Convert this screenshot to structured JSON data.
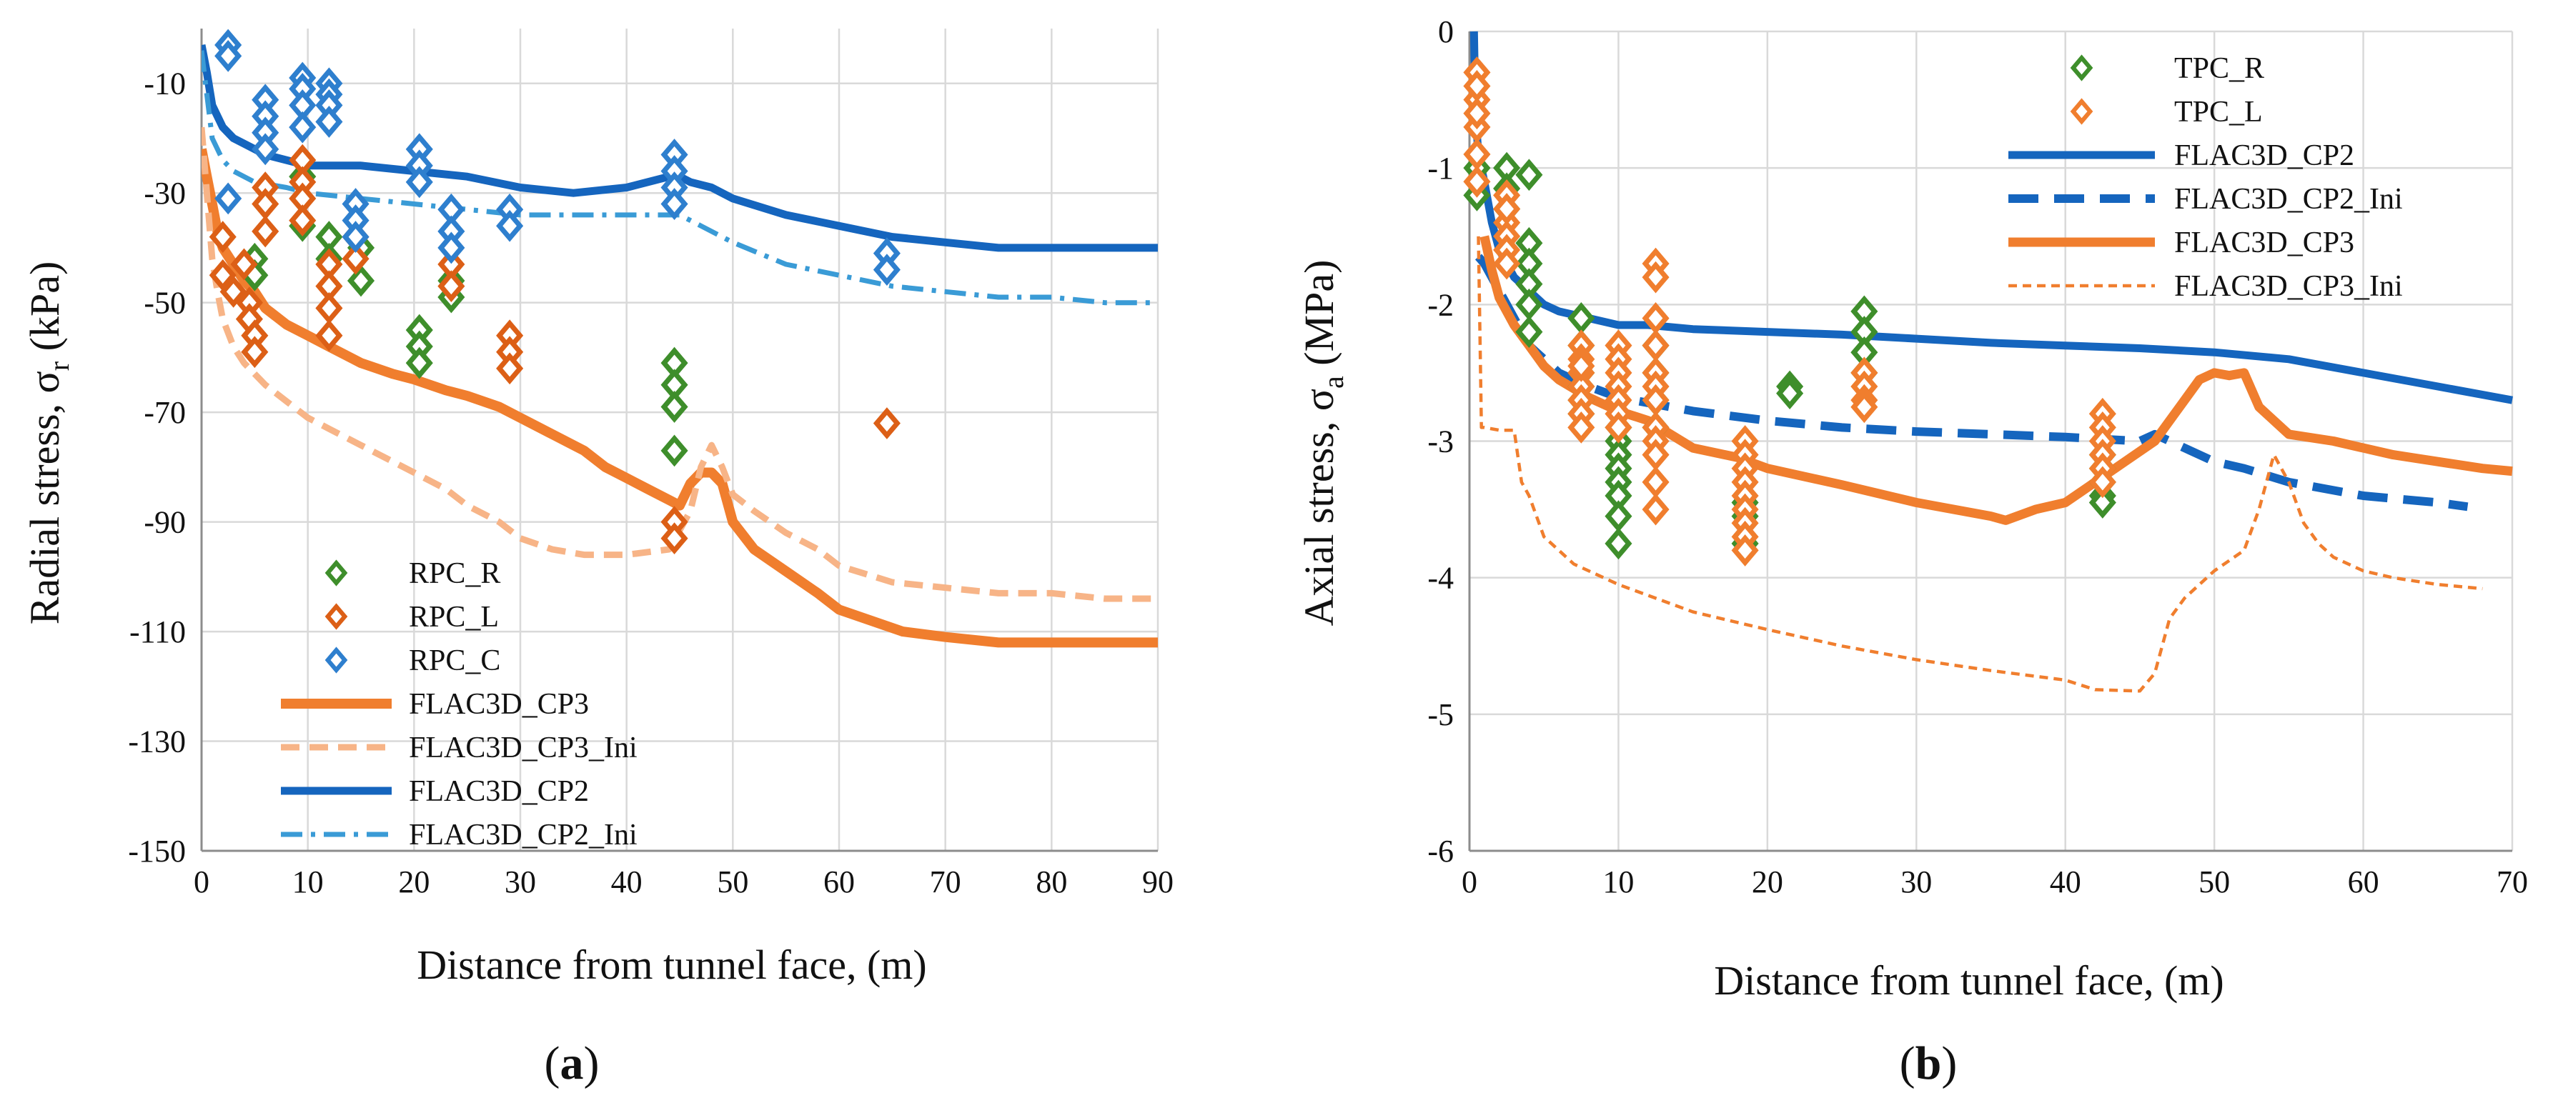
{
  "colors": {
    "green": "#3e8e2b",
    "orange_dark": "#dc5f16",
    "blue_marker": "#2e7fce",
    "cp3_orange": "#f07e2e",
    "cp3_ini_orange": "#f7b487",
    "cp2_blue": "#1565be",
    "cp2_ini_blue": "#3a9bd6"
  },
  "chart_data": [
    {
      "type": "scatter",
      "caption": [
        "(",
        "a",
        ")"
      ],
      "xlabel": "Distance from tunnel face, (m)",
      "ylabel": "Radial stress, σ",
      "ylabel_sub": "r",
      "ylabel_unit": " (kPa)",
      "xlim": [
        0,
        90
      ],
      "ylim": [
        -150,
        0
      ],
      "xticks": [
        "0",
        "10",
        "20",
        "30",
        "40",
        "50",
        "60",
        "70",
        "80",
        "90"
      ],
      "yticks": [
        "-10",
        "-30",
        "-50",
        "-70",
        "-90",
        "-110",
        "-130",
        "-150"
      ],
      "legend": [
        "RPC_R",
        "RPC_L",
        "RPC_C",
        "FLAC3D_CP3",
        "FLAC3D_CP3_Ini",
        "FLAC3D_CP2",
        "FLAC3D_CP2_Ini"
      ],
      "series": [
        {
          "name": "RPC_R",
          "kind": "marker",
          "x": [
            5,
            5,
            9.5,
            9.5,
            12,
            12,
            15,
            15,
            20.5,
            20.5,
            20.5,
            23.5,
            23.5,
            44.5,
            44.5,
            44.5,
            44.5
          ],
          "y": [
            -42,
            -45,
            -27,
            -36,
            -38,
            -42,
            -40,
            -46,
            -55,
            -58,
            -61,
            -46,
            -49,
            -61,
            -65,
            -69,
            -77
          ]
        },
        {
          "name": "RPC_L",
          "kind": "marker",
          "x": [
            2,
            2,
            3,
            4,
            4.5,
            4.5,
            5,
            5,
            6,
            6,
            6,
            9.5,
            9.5,
            9.5,
            9.5,
            12,
            12,
            12,
            12,
            14.5,
            14.5,
            23.5,
            23.5,
            29,
            29,
            29,
            44.5,
            44.5,
            64.5
          ],
          "y": [
            -38,
            -45,
            -48,
            -43,
            -50,
            -53,
            -56,
            -59,
            -29,
            -32,
            -37,
            -24,
            -28,
            -31,
            -35,
            -43,
            -47,
            -51,
            -56,
            -38,
            -42,
            -43,
            -47,
            -56,
            -59,
            -62,
            -90,
            -93,
            -72
          ]
        },
        {
          "name": "RPC_C",
          "kind": "marker",
          "x": [
            2.5,
            2.5,
            2.5,
            6,
            6,
            6,
            6,
            9.5,
            9.5,
            9.5,
            9.5,
            12,
            12,
            12,
            12,
            14.5,
            14.5,
            14.5,
            20.5,
            20.5,
            20.5,
            23.5,
            23.5,
            23.5,
            29,
            29,
            44.5,
            44.5,
            44.5,
            44.5,
            64.5,
            64.5
          ],
          "y": [
            -3,
            -5,
            -31,
            -13,
            -16,
            -19,
            -22,
            -9,
            -11,
            -14,
            -18,
            -10,
            -12,
            -14,
            -17,
            -32,
            -35,
            -38,
            -22,
            -25,
            -28,
            -33,
            -37,
            -40,
            -33,
            -36,
            -23,
            -26,
            -29,
            -32,
            -41,
            -44
          ]
        },
        {
          "name": "FLAC3D_CP3",
          "kind": "line",
          "x": [
            0,
            0.5,
            1,
            1.5,
            2,
            3,
            4,
            5,
            6,
            8,
            10,
            12,
            15,
            18,
            20,
            23,
            25,
            28,
            30,
            33,
            36,
            38,
            40,
            42,
            44,
            45,
            46,
            47,
            48,
            49,
            50,
            52,
            55,
            58,
            60,
            63,
            66,
            70,
            75,
            80,
            85,
            90
          ],
          "y": [
            -22,
            -27,
            -32,
            -37,
            -40,
            -43,
            -46,
            -48,
            -51,
            -54,
            -56,
            -58,
            -61,
            -63,
            -64,
            -66,
            -67,
            -69,
            -71,
            -74,
            -77,
            -80,
            -82,
            -84,
            -86,
            -87,
            -83,
            -81,
            -81,
            -83,
            -90,
            -95,
            -99,
            -103,
            -106,
            -108,
            -110,
            -111,
            -112,
            -112,
            -112,
            -112
          ]
        },
        {
          "name": "FLAC3D_CP3_Ini",
          "kind": "dash",
          "x": [
            0,
            0.5,
            1,
            1.5,
            2,
            3,
            4,
            5,
            6,
            8,
            10,
            12,
            15,
            18,
            20,
            23,
            25,
            28,
            30,
            33,
            36,
            40,
            44,
            46,
            47,
            48,
            49,
            50,
            52,
            55,
            58,
            60,
            65,
            70,
            75,
            80,
            85,
            90
          ],
          "y": [
            -18,
            -30,
            -42,
            -48,
            -53,
            -58,
            -61,
            -63,
            -65,
            -68,
            -71,
            -73,
            -76,
            -79,
            -81,
            -84,
            -87,
            -90,
            -93,
            -95,
            -96,
            -96,
            -95,
            -88,
            -80,
            -76,
            -80,
            -85,
            -88,
            -92,
            -95,
            -98,
            -101,
            -102,
            -103,
            -103,
            -104,
            -104
          ]
        },
        {
          "name": "FLAC3D_CP2",
          "kind": "line",
          "x": [
            0,
            0.5,
            1,
            2,
            3,
            4,
            5,
            6,
            8,
            10,
            12,
            15,
            20,
            25,
            30,
            35,
            40,
            44,
            45,
            46,
            48,
            50,
            55,
            60,
            65,
            70,
            75,
            80,
            85,
            90
          ],
          "y": [
            -3,
            -8,
            -14,
            -18,
            -20,
            -21,
            -22,
            -23,
            -24,
            -25,
            -25,
            -25,
            -26,
            -27,
            -29,
            -30,
            -29,
            -27,
            -27,
            -28,
            -29,
            -31,
            -34,
            -36,
            -38,
            -39,
            -40,
            -40,
            -40,
            -40
          ]
        },
        {
          "name": "FLAC3D_CP2_Ini",
          "kind": "dashdot",
          "x": [
            0,
            0.5,
            1,
            2,
            3,
            5,
            8,
            10,
            15,
            20,
            25,
            30,
            35,
            40,
            44,
            45,
            47,
            50,
            55,
            60,
            65,
            70,
            75,
            80,
            85,
            90
          ],
          "y": [
            -4,
            -12,
            -20,
            -24,
            -26,
            -28,
            -29,
            -30,
            -31,
            -32,
            -33,
            -34,
            -34,
            -34,
            -34,
            -34,
            -36,
            -39,
            -43,
            -45,
            -47,
            -48,
            -49,
            -49,
            -50,
            -50
          ]
        }
      ]
    },
    {
      "type": "scatter",
      "caption": [
        "(",
        "b",
        ")"
      ],
      "xlabel": "Distance from tunnel face, (m)",
      "ylabel": "Axial stress, σ",
      "ylabel_sub": "a",
      "ylabel_unit": " (MPa)",
      "xlim": [
        0,
        70
      ],
      "ylim": [
        -6,
        0
      ],
      "xticks": [
        "0",
        "10",
        "20",
        "30",
        "40",
        "50",
        "60",
        "70"
      ],
      "yticks": [
        "0",
        "-1",
        "-2",
        "-3",
        "-4",
        "-5",
        "-6"
      ],
      "legend": [
        "TPC_R",
        "TPC_L",
        "FLAC3D_CP2",
        "FLAC3D_CP2_Ini",
        "FLAC3D_CP3",
        "FLAC3D_CP3_Ini"
      ],
      "series": [
        {
          "name": "TPC_R",
          "kind": "marker",
          "x": [
            0.5,
            0.5,
            2.5,
            2.5,
            2.5,
            4,
            4,
            4,
            4,
            4,
            4,
            7.5,
            7.5,
            7.5,
            7.5,
            7.5,
            7.5,
            10,
            10,
            10,
            10,
            10,
            10,
            10,
            10,
            12.5,
            12.5,
            12.5,
            12.5,
            18.5,
            18.5,
            18.5,
            21.5,
            21.5,
            26.5,
            26.5,
            26.5,
            26.5,
            42.5,
            42.5,
            42.5,
            42.5,
            42.5
          ],
          "y": [
            -1.2,
            -1.0,
            -1.0,
            -1.15,
            -1.3,
            -1.05,
            -1.55,
            -1.7,
            -1.85,
            -2.0,
            -2.2,
            -2.1,
            -2.3,
            -2.5,
            -2.6,
            -2.7,
            -2.8,
            -2.9,
            -3.0,
            -3.1,
            -3.2,
            -3.3,
            -3.4,
            -3.55,
            -3.75,
            -2.3,
            -2.5,
            -2.7,
            -2.9,
            -3.45,
            -3.55,
            -3.75,
            -2.6,
            -2.65,
            -2.05,
            -2.2,
            -2.35,
            -2.5,
            -3.1,
            -3.2,
            -3.3,
            -3.4,
            -3.45
          ]
        },
        {
          "name": "TPC_L",
          "kind": "marker",
          "x": [
            0.5,
            0.5,
            0.5,
            0.5,
            0.5,
            0.5,
            0.5,
            2.5,
            2.5,
            2.5,
            2.5,
            2.5,
            2.5,
            7.5,
            7.5,
            7.5,
            7.5,
            7.5,
            7.5,
            7.5,
            7.5,
            10,
            10,
            10,
            10,
            10,
            10,
            10,
            12.5,
            12.5,
            12.5,
            12.5,
            12.5,
            12.5,
            12.5,
            12.5,
            12.5,
            12.5,
            12.5,
            12.5,
            18.5,
            18.5,
            18.5,
            18.5,
            18.5,
            18.5,
            18.5,
            18.5,
            18.5,
            26.5,
            26.5,
            26.5,
            26.5,
            42.5,
            42.5,
            42.5,
            42.5,
            42.5,
            42.5
          ],
          "y": [
            -0.3,
            -0.5,
            -0.7,
            -0.9,
            -1.1,
            -0.4,
            -0.6,
            -1.2,
            -1.4,
            -1.5,
            -1.6,
            -1.7,
            -1.3,
            -2.3,
            -2.4,
            -2.5,
            -2.6,
            -2.7,
            -2.8,
            -2.9,
            -2.45,
            -2.3,
            -2.4,
            -2.5,
            -2.6,
            -2.7,
            -2.8,
            -2.9,
            -1.7,
            -1.8,
            -2.1,
            -2.3,
            -2.5,
            -2.6,
            -2.7,
            -2.9,
            -3.0,
            -3.1,
            -3.3,
            -3.5,
            -3.0,
            -3.1,
            -3.2,
            -3.3,
            -3.4,
            -3.5,
            -3.6,
            -3.7,
            -3.8,
            -2.5,
            -2.6,
            -2.7,
            -2.75,
            -2.8,
            -2.9,
            -3.0,
            -3.1,
            -3.2,
            -3.3
          ]
        },
        {
          "name": "FLAC3D_CP2",
          "kind": "line",
          "x": [
            0.3,
            0.4,
            0.6,
            1,
            1.5,
            2,
            3,
            4,
            5,
            6,
            8,
            10,
            12,
            15,
            20,
            25,
            30,
            35,
            40,
            45,
            50,
            55,
            60,
            65,
            70
          ],
          "y": [
            0,
            -0.6,
            -0.9,
            -1.1,
            -1.4,
            -1.6,
            -1.8,
            -1.9,
            -2.0,
            -2.05,
            -2.1,
            -2.15,
            -2.15,
            -2.18,
            -2.2,
            -2.22,
            -2.25,
            -2.28,
            -2.3,
            -2.32,
            -2.35,
            -2.4,
            -2.5,
            -2.6,
            -2.7
          ]
        },
        {
          "name": "FLAC3D_CP2_Ini",
          "kind": "dash",
          "x": [
            0.6,
            1,
            2,
            3,
            4,
            5,
            6,
            8,
            10,
            12,
            15,
            20,
            25,
            30,
            35,
            40,
            45,
            46,
            48,
            50,
            52,
            55,
            60,
            65,
            67
          ],
          "y": [
            -1.65,
            -1.7,
            -1.9,
            -2.1,
            -2.3,
            -2.4,
            -2.5,
            -2.6,
            -2.68,
            -2.72,
            -2.78,
            -2.85,
            -2.9,
            -2.93,
            -2.95,
            -2.97,
            -3.0,
            -2.95,
            -3.05,
            -3.15,
            -3.2,
            -3.3,
            -3.4,
            -3.45,
            -3.48
          ]
        },
        {
          "name": "FLAC3D_CP3",
          "kind": "line",
          "x": [
            1,
            1.5,
            2,
            3,
            4,
            5,
            6,
            8,
            10,
            12,
            15,
            18,
            20,
            25,
            30,
            35,
            36,
            38,
            40,
            42,
            44,
            46,
            48,
            49,
            50,
            51,
            52,
            53,
            55,
            58,
            60,
            62,
            65,
            68,
            70
          ],
          "y": [
            -1.5,
            -1.75,
            -1.95,
            -2.15,
            -2.3,
            -2.45,
            -2.55,
            -2.68,
            -2.78,
            -2.85,
            -3.05,
            -3.12,
            -3.2,
            -3.32,
            -3.45,
            -3.55,
            -3.58,
            -3.5,
            -3.45,
            -3.3,
            -3.15,
            -3.0,
            -2.7,
            -2.55,
            -2.5,
            -2.52,
            -2.5,
            -2.75,
            -2.95,
            -3.0,
            -3.05,
            -3.1,
            -3.15,
            -3.2,
            -3.22
          ]
        },
        {
          "name": "FLAC3D_CP3_Ini",
          "kind": "thindash",
          "x": [
            0.6,
            0.8,
            1,
            2,
            3,
            3.5,
            4,
            5,
            7,
            10,
            15,
            20,
            25,
            30,
            35,
            40,
            42,
            45,
            46,
            47,
            48,
            50,
            52,
            53,
            54,
            55,
            56,
            57,
            58,
            60,
            62,
            65,
            68
          ],
          "y": [
            -1.5,
            -2.9,
            -2.9,
            -2.92,
            -2.92,
            -3.3,
            -3.4,
            -3.7,
            -3.9,
            -4.05,
            -4.25,
            -4.38,
            -4.5,
            -4.6,
            -4.68,
            -4.75,
            -4.82,
            -4.83,
            -4.7,
            -4.3,
            -4.15,
            -3.95,
            -3.8,
            -3.5,
            -3.1,
            -3.3,
            -3.6,
            -3.75,
            -3.85,
            -3.95,
            -4.0,
            -4.05,
            -4.08
          ]
        }
      ]
    }
  ]
}
